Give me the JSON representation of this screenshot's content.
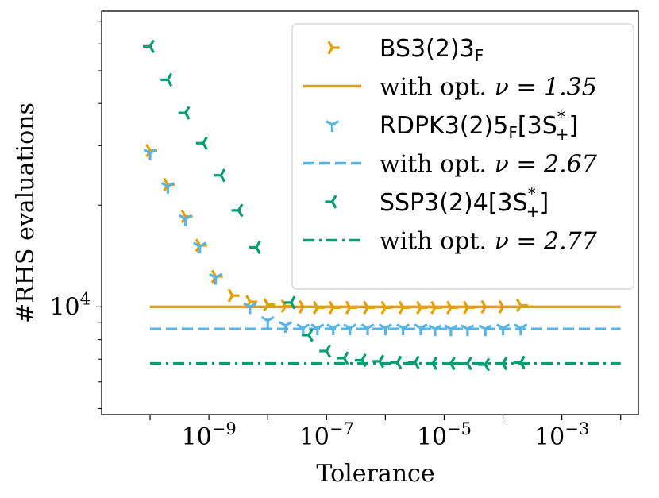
{
  "chart_data": {
    "type": "scatter",
    "xlabel": "Tolerance",
    "ylabel": "#RHS evaluations",
    "xscale": "log",
    "yscale": "log",
    "xlim": [
      1.5e-11,
      0.02
    ],
    "ylim": [
      4800,
      75000
    ],
    "xticks": [
      {
        "value": 1e-09,
        "label": "10^-9",
        "base": "10",
        "exp": "−9"
      },
      {
        "value": 1e-07,
        "label": "10^-7",
        "base": "10",
        "exp": "−7"
      },
      {
        "value": 1e-05,
        "label": "10^-5",
        "base": "10",
        "exp": "−5"
      },
      {
        "value": 0.001,
        "label": "10^-3",
        "base": "10",
        "exp": "−3"
      }
    ],
    "yticks": [
      {
        "value": 10000,
        "label": "10^4",
        "base": "10",
        "exp": "4"
      }
    ],
    "legend_position": "top-right",
    "grid": false,
    "series": [
      {
        "name": "BS3(2)3_F",
        "label_main": "BS3(2)3",
        "label_sub": "F",
        "kind": "marker",
        "marker": "tri-right",
        "color": "#E69F00",
        "x": [
          1e-10,
          2e-10,
          4e-10,
          7e-10,
          1.3e-09,
          2.5e-09,
          5e-09,
          1e-08,
          2e-08,
          4e-08,
          7e-08,
          1.3e-07,
          2.5e-07,
          5e-07,
          1e-06,
          2e-06,
          4e-06,
          7e-06,
          1.3e-05,
          2.5e-05,
          5e-05,
          0.0001,
          0.0002
        ],
        "y": [
          29000,
          23000,
          18500,
          15200,
          12300,
          10800,
          10350,
          10150,
          10050,
          10000,
          9950,
          9950,
          9950,
          9950,
          9950,
          9950,
          9950,
          9950,
          9950,
          9950,
          10000,
          10000,
          10100
        ]
      },
      {
        "name": "with opt. ν = 1.35",
        "label_main": "with opt. ",
        "label_nu": "ν = 1.35",
        "kind": "line",
        "style": "solid",
        "color": "#E69F00",
        "y": 10000
      },
      {
        "name": "RDPK3(2)5_F[3S*_+]",
        "label_main": "RDPK3(2)5",
        "label_sub": "F",
        "label_tail": "[3S",
        "label_sup": "*",
        "label_sub2": "+",
        "label_end": "]",
        "kind": "marker",
        "marker": "tri-down",
        "color": "#56B4E9",
        "x": [
          1e-10,
          2e-10,
          4e-10,
          7e-10,
          1.3e-09,
          5e-09,
          1e-08,
          2e-08,
          4e-08,
          7e-08,
          1.3e-07,
          2.5e-07,
          5e-07,
          1e-06,
          2e-06,
          4e-06,
          7e-06,
          1.3e-05,
          2.5e-05,
          5e-05,
          0.0001,
          0.0002
        ],
        "y": [
          28500,
          22700,
          18200,
          15100,
          12200,
          10000,
          9100,
          8800,
          8650,
          8650,
          8650,
          8650,
          8650,
          8650,
          8650,
          8650,
          8600,
          8600,
          8600,
          8600,
          8650,
          8650
        ]
      },
      {
        "name": "with opt. ν = 2.67",
        "label_main": "with opt. ",
        "label_nu": "ν = 2.67",
        "kind": "line",
        "style": "dashed",
        "color": "#56B4E9",
        "y": 8600
      },
      {
        "name": "SSP3(2)4[3S*_+]",
        "label_main": "SSP3(2)4[3S",
        "label_sup": "*",
        "label_sub2": "+",
        "label_end": "]",
        "kind": "marker",
        "marker": "tri-left",
        "color": "#009E73",
        "x": [
          1e-10,
          2e-10,
          4e-10,
          8e-10,
          1.6e-09,
          3.2e-09,
          6.4e-09,
          2.5e-08,
          5e-08,
          1e-07,
          2e-07,
          4e-07,
          8e-07,
          1.6e-06,
          3.2e-06,
          6.4e-06,
          1.3e-05,
          2.5e-05,
          5e-05,
          0.0001,
          0.0002
        ],
        "y": [
          59000,
          47000,
          37500,
          30500,
          24500,
          19300,
          15000,
          10300,
          8250,
          7400,
          7050,
          6950,
          6900,
          6850,
          6850,
          6800,
          6800,
          6800,
          6750,
          6800,
          6850
        ]
      },
      {
        "name": "with opt. ν = 2.77",
        "label_main": "with opt. ",
        "label_nu": "ν = 2.77",
        "kind": "line",
        "style": "dashdot",
        "color": "#009E73",
        "y": 6800
      }
    ]
  }
}
